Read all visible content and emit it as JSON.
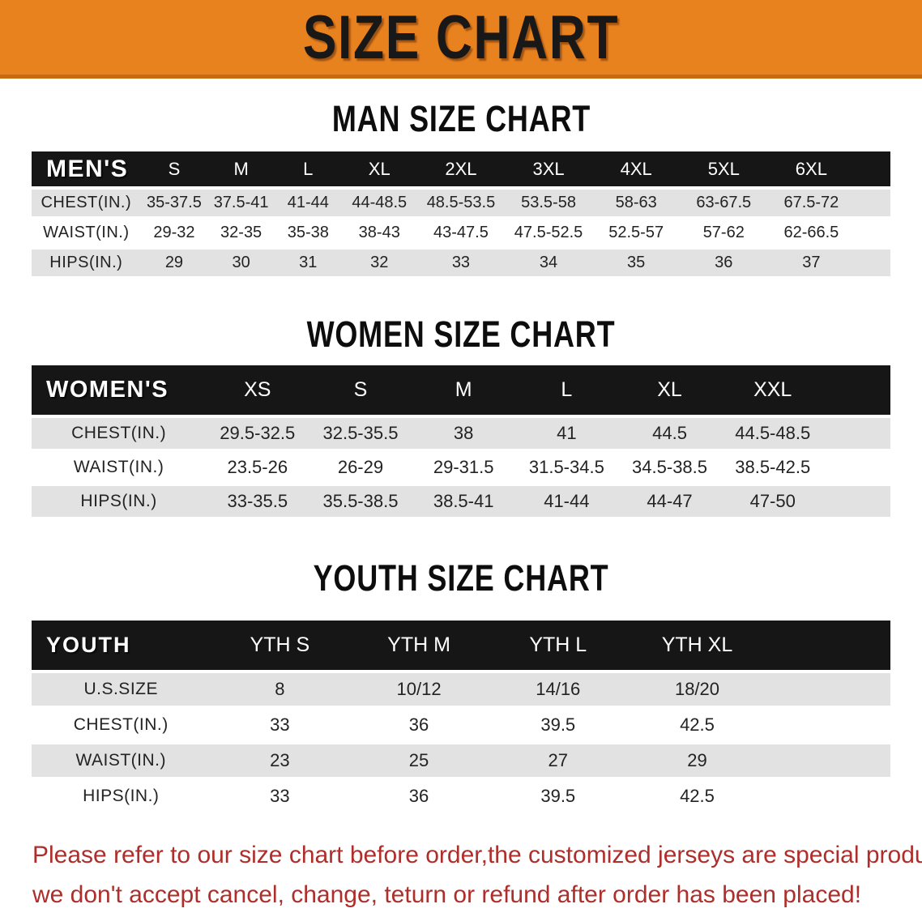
{
  "colors": {
    "banner_bg": "#e8821f",
    "banner_edge": "#c86a10",
    "header_bar": "#161616",
    "row_alt": "#e2e2e2",
    "notice_red": "#ad2e2a"
  },
  "banner": {
    "title": "SIZE CHART"
  },
  "sections": [
    {
      "heading": "MAN SIZE CHART",
      "table": {
        "corner": "MEN'S",
        "columns": [
          "S",
          "M",
          "L",
          "XL",
          "2XL",
          "3XL",
          "4XL",
          "5XL",
          "6XL"
        ],
        "rows": [
          {
            "label": "CHEST(IN.)",
            "values": [
              "35-37.5",
              "37.5-41",
              "41-44",
              "44-48.5",
              "48.5-53.5",
              "53.5-58",
              "58-63",
              "63-67.5",
              "67.5-72"
            ]
          },
          {
            "label": "WAIST(IN.)",
            "values": [
              "29-32",
              "32-35",
              "35-38",
              "38-43",
              "43-47.5",
              "47.5-52.5",
              "52.5-57",
              "57-62",
              "62-66.5"
            ]
          },
          {
            "label": "HIPS(IN.)",
            "values": [
              "29",
              "30",
              "31",
              "32",
              "33",
              "34",
              "35",
              "36",
              "37"
            ]
          }
        ]
      }
    },
    {
      "heading": "WOMEN SIZE CHART",
      "table": {
        "corner": "WOMEN'S",
        "columns": [
          "XS",
          "S",
          "M",
          "L",
          "XL",
          "XXL"
        ],
        "rows": [
          {
            "label": "CHEST(IN.)",
            "values": [
              "29.5-32.5",
              "32.5-35.5",
              "38",
              "41",
              "44.5",
              "44.5-48.5"
            ]
          },
          {
            "label": "WAIST(IN.)",
            "values": [
              "23.5-26",
              "26-29",
              "29-31.5",
              "31.5-34.5",
              "34.5-38.5",
              "38.5-42.5"
            ]
          },
          {
            "label": "HIPS(IN.)",
            "values": [
              "33-35.5",
              "35.5-38.5",
              "38.5-41",
              "41-44",
              "44-47",
              "47-50"
            ]
          }
        ]
      }
    },
    {
      "heading": "YOUTH SIZE CHART",
      "table": {
        "corner": "YOUTH",
        "columns": [
          "YTH S",
          "YTH M",
          "YTH L",
          "YTH XL"
        ],
        "rows": [
          {
            "label": "U.S.SIZE",
            "values": [
              "8",
              "10/12",
              "14/16",
              "18/20"
            ]
          },
          {
            "label": "CHEST(IN.)",
            "values": [
              "33",
              "36",
              "39.5",
              "42.5"
            ]
          },
          {
            "label": "WAIST(IN.)",
            "values": [
              "23",
              "25",
              "27",
              "29"
            ]
          },
          {
            "label": "HIPS(IN.)",
            "values": [
              "33",
              "36",
              "39.5",
              "42.5"
            ]
          }
        ]
      }
    }
  ],
  "notice": {
    "line1": "Please refer to our size chart before order,the customized jerseys are special products,",
    "line2": "we don't accept cancel, change, teturn or refund after order has been placed!"
  }
}
